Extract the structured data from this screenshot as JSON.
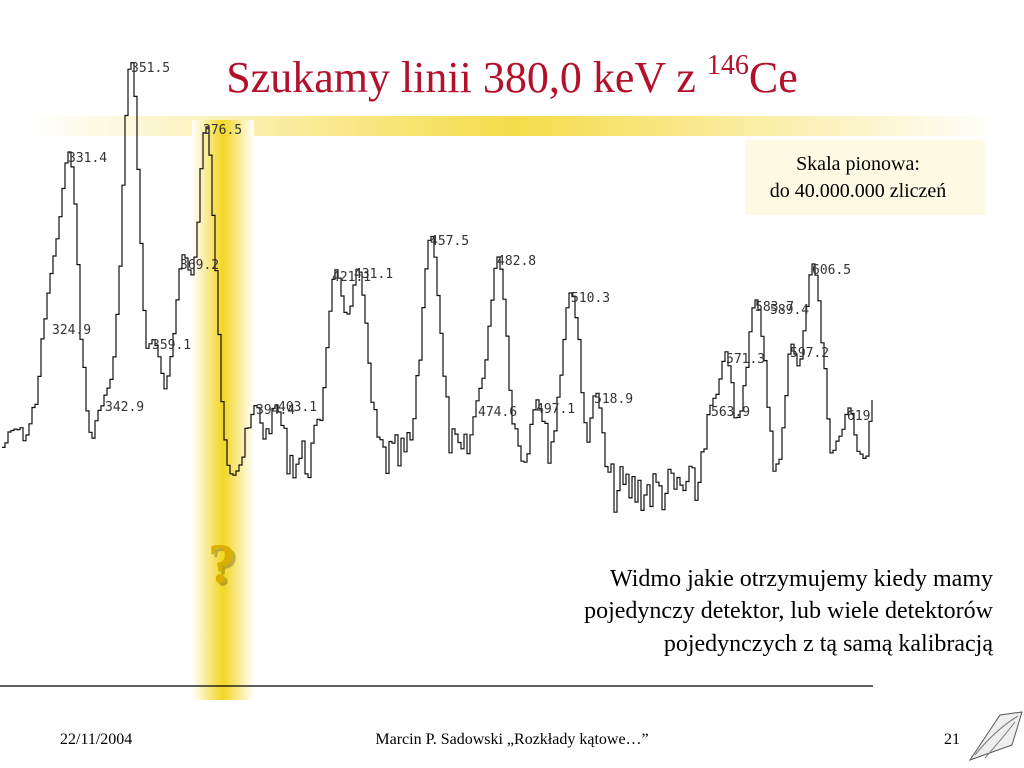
{
  "title": {
    "text": "Szukamy linii 380,0 keV z ",
    "superscript": "146",
    "element": "Ce"
  },
  "peak_labels": [
    "351.5",
    "376.5",
    "331.4",
    "369.2",
    "324.9",
    "359.1",
    "342.9",
    "394.4",
    "403.1",
    "421.1",
    "431.1",
    "457.5",
    "482.8",
    "510.3",
    "474.6",
    "497.1",
    "518.9",
    "571.3",
    "563.9",
    "583.7",
    "589.4",
    "597.2",
    "606.5",
    "619"
  ],
  "question_mark": "?",
  "scale_note": [
    "Skala pionowa:",
    "do 40.000.000 zliczeń"
  ],
  "caption": [
    "Widmo jakie otrzymujemy kiedy mamy",
    "pojedynczy detektor, lub wiele detektorów",
    "pojedynczych z tą samą kalibracją"
  ],
  "footer": {
    "date": "22/11/2004",
    "author": "Marcin P. Sadowski „Rozkłady kątowe…”",
    "page": "21"
  }
}
